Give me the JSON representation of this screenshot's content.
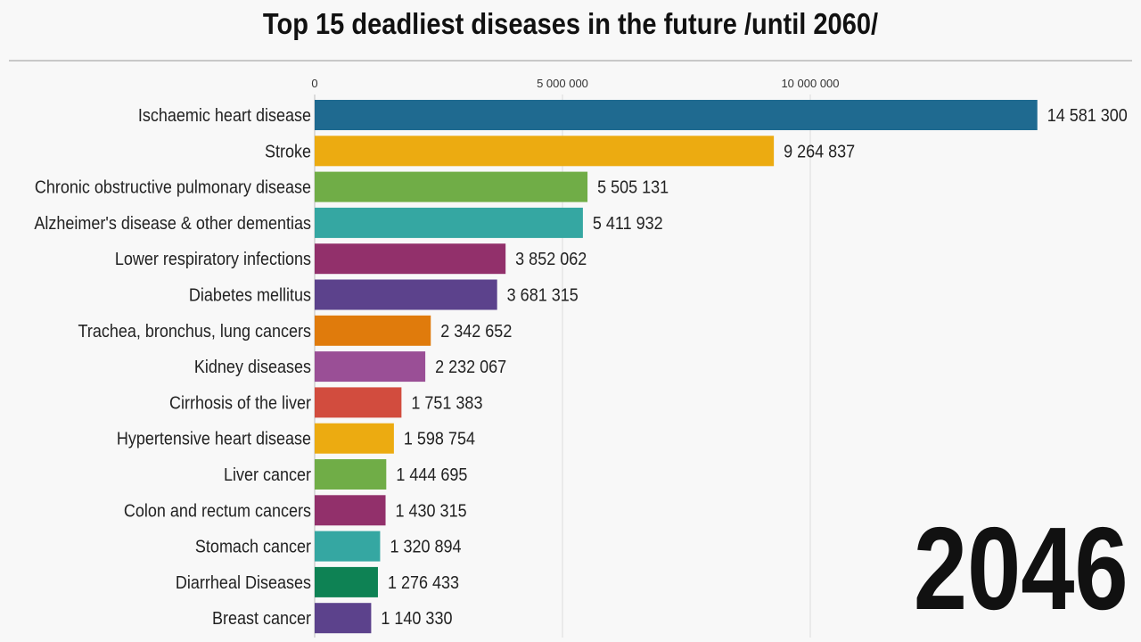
{
  "chart_data": {
    "type": "bar",
    "orientation": "horizontal",
    "title": "Top 15 deadliest diseases in the future /until 2060/",
    "year": "2046",
    "xlim": [
      0,
      14581300
    ],
    "xticks": [
      0,
      5000000,
      10000000
    ],
    "xtick_labels": [
      "0",
      "5 000 000",
      "10 000 000"
    ],
    "grid": true,
    "categories": [
      "Ischaemic heart disease",
      "Stroke",
      "Chronic obstructive pulmonary disease",
      "Alzheimer's disease & other dementias",
      "Lower respiratory infections",
      "Diabetes mellitus",
      "Trachea, bronchus, lung cancers",
      "Kidney diseases",
      "Cirrhosis of the liver",
      "Hypertensive heart disease",
      "Liver cancer",
      "Colon and rectum cancers",
      "Stomach cancer",
      "Diarrheal Diseases",
      "Breast cancer"
    ],
    "values": [
      14581300,
      9264837,
      5505131,
      5411932,
      3852062,
      3681315,
      2342652,
      2232067,
      1751383,
      1598754,
      1444695,
      1430315,
      1320894,
      1276433,
      1140330
    ],
    "value_labels": [
      "14 581 300",
      "9 264 837",
      "5 505 131",
      "5 411 932",
      "3 852 062",
      "3 681 315",
      "2 342 652",
      "2 232 067",
      "1 751 383",
      "1 598 754",
      "1 444 695",
      "1 430 315",
      "1 320 894",
      "1 276 433",
      "1 140 330"
    ],
    "colors": [
      "#1f6a90",
      "#ecab11",
      "#70ad47",
      "#35a7a2",
      "#92306b",
      "#5c428c",
      "#e07b0c",
      "#9a4f96",
      "#d24c3e",
      "#ecab11",
      "#70ad47",
      "#92306b",
      "#35a7a2",
      "#0e8254",
      "#5c428c"
    ]
  }
}
